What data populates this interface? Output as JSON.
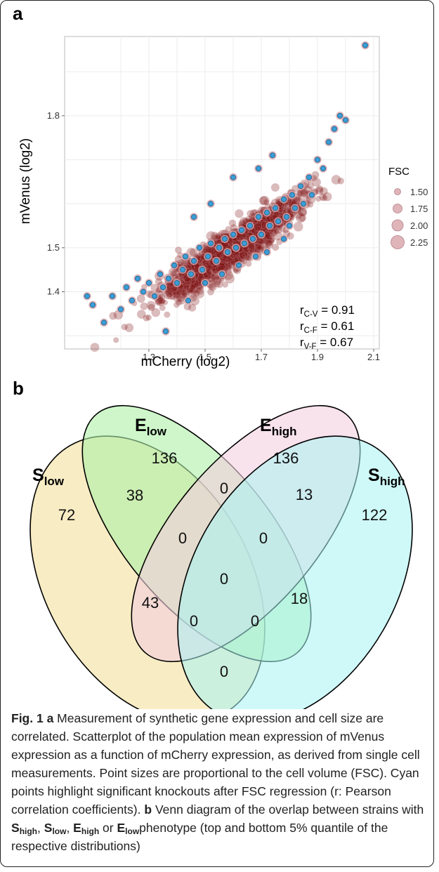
{
  "panel_a_label": "a",
  "panel_b_label": "b",
  "chart_data": {
    "type": "scatter",
    "xlabel": "mCherry (log2)",
    "ylabel": "mVenus (log2)",
    "xlim": [
      1.0,
      2.12
    ],
    "ylim": [
      1.27,
      1.98
    ],
    "xticks": [
      1.3,
      1.5,
      1.7,
      1.9,
      2.1
    ],
    "xtick_labels": [
      "1.3",
      "1.5",
      "1.7",
      "1.9",
      "2.1"
    ],
    "yticks": [
      1.4,
      1.5,
      1.8
    ],
    "ytick_labels": [
      "1.4",
      "1.5",
      "1.8"
    ],
    "grid": true,
    "legend": {
      "title": "FSC",
      "placement": "right",
      "entries": [
        {
          "label": "1.50",
          "size": 1.5
        },
        {
          "label": "1.75",
          "size": 1.75
        },
        {
          "label": "2.00",
          "size": 2.0
        },
        {
          "label": "2.25",
          "size": 2.25
        }
      ]
    },
    "annotations": [
      {
        "sym": "r",
        "sub": "C-V",
        "text": " = 0.91"
      },
      {
        "sym": "r",
        "sub": "C-F",
        "text": " = 0.61"
      },
      {
        "sym": "r",
        "sub": "V-F",
        "text": " = 0.67"
      }
    ],
    "colors": {
      "background_points": "#7a1010",
      "highlight_points": "#3a9dd6",
      "halo": "#d9a8ad"
    },
    "highlight_points": [
      [
        1.08,
        1.39
      ],
      [
        1.1,
        1.37
      ],
      [
        1.14,
        1.33
      ],
      [
        1.17,
        1.39
      ],
      [
        1.2,
        1.36
      ],
      [
        1.22,
        1.41
      ],
      [
        1.24,
        1.38
      ],
      [
        1.26,
        1.43
      ],
      [
        1.28,
        1.4
      ],
      [
        1.3,
        1.42
      ],
      [
        1.32,
        1.39
      ],
      [
        1.34,
        1.44
      ],
      [
        1.35,
        1.41
      ],
      [
        1.37,
        1.43
      ],
      [
        1.39,
        1.46
      ],
      [
        1.4,
        1.42
      ],
      [
        1.42,
        1.45
      ],
      [
        1.43,
        1.48
      ],
      [
        1.45,
        1.44
      ],
      [
        1.46,
        1.47
      ],
      [
        1.48,
        1.5
      ],
      [
        1.49,
        1.45
      ],
      [
        1.51,
        1.48
      ],
      [
        1.52,
        1.51
      ],
      [
        1.54,
        1.47
      ],
      [
        1.55,
        1.5
      ],
      [
        1.57,
        1.52
      ],
      [
        1.58,
        1.49
      ],
      [
        1.6,
        1.53
      ],
      [
        1.61,
        1.5
      ],
      [
        1.63,
        1.54
      ],
      [
        1.64,
        1.51
      ],
      [
        1.66,
        1.55
      ],
      [
        1.67,
        1.52
      ],
      [
        1.69,
        1.57
      ],
      [
        1.7,
        1.53
      ],
      [
        1.72,
        1.58
      ],
      [
        1.73,
        1.55
      ],
      [
        1.75,
        1.59
      ],
      [
        1.76,
        1.56
      ],
      [
        1.78,
        1.61
      ],
      [
        1.79,
        1.57
      ],
      [
        1.81,
        1.62
      ],
      [
        1.82,
        1.59
      ],
      [
        1.84,
        1.64
      ],
      [
        1.85,
        1.6
      ],
      [
        1.87,
        1.66
      ],
      [
        1.88,
        1.62
      ],
      [
        1.9,
        1.7
      ],
      [
        1.92,
        1.68
      ],
      [
        1.94,
        1.74
      ],
      [
        1.96,
        1.77
      ],
      [
        1.98,
        1.8
      ],
      [
        2.0,
        1.79
      ],
      [
        2.07,
        1.96
      ],
      [
        1.36,
        1.31
      ],
      [
        1.46,
        1.57
      ],
      [
        1.52,
        1.6
      ],
      [
        1.6,
        1.66
      ],
      [
        1.69,
        1.68
      ],
      [
        1.74,
        1.71
      ],
      [
        1.8,
        1.55
      ],
      [
        1.44,
        1.38
      ],
      [
        1.5,
        1.42
      ],
      [
        1.56,
        1.44
      ],
      [
        1.62,
        1.46
      ],
      [
        1.68,
        1.48
      ],
      [
        1.72,
        1.49
      ],
      [
        1.78,
        1.52
      ]
    ]
  },
  "venn": {
    "sets": [
      {
        "base": "S",
        "sub": "low",
        "color": "#f5e2a4"
      },
      {
        "base": "E",
        "sub": "low",
        "color": "#aef0a6"
      },
      {
        "base": "E",
        "sub": "high",
        "color": "#f4cfe0"
      },
      {
        "base": "S",
        "sub": "high",
        "color": "#a8f4f4"
      }
    ],
    "counts": {
      "s_low_only": "72",
      "e_low_only": "136",
      "e_high_only": "136",
      "s_high_only": "122",
      "s_low_e_low": "38",
      "e_low_e_high": "0",
      "e_high_s_high": "13",
      "s_low_e_low_e_high": "0",
      "e_low_e_high_s_high": "0",
      "all_four": "0",
      "s_low_e_high": "43",
      "e_low_s_high": "18",
      "s_low_e_high_s_high": "0",
      "s_low_e_low_s_high": "0",
      "s_low_s_high": "0"
    }
  },
  "caption": {
    "fig_label": "Fig. 1",
    "a_label": "a",
    "a_text": " Measurement of synthetic gene expression and cell size are correlated. Scatterplot of the population mean expression of mVenus expression as a function of mCherry expression, as derived from single cell measurements. Point sizes are proportional to the cell volume (FSC). Cyan points highlight significant knockouts after FSC regression (r: Pearson correlation coefficients).",
    "b_label": "b",
    "b_text1": " Venn diagram of the overlap between strains with ",
    "s_high_base": "S",
    "s_high_sub": "high",
    "sep1": ", ",
    "s_low_base": "S",
    "s_low_sub": "low",
    "sep2": ", ",
    "e_high_base": "E",
    "e_high_sub": "high",
    "sep3": " or ",
    "e_low_base": "E",
    "e_low_sub": "low",
    "b_text2": "phenotype (top and bottom 5% quantile of the respective distributions)"
  }
}
